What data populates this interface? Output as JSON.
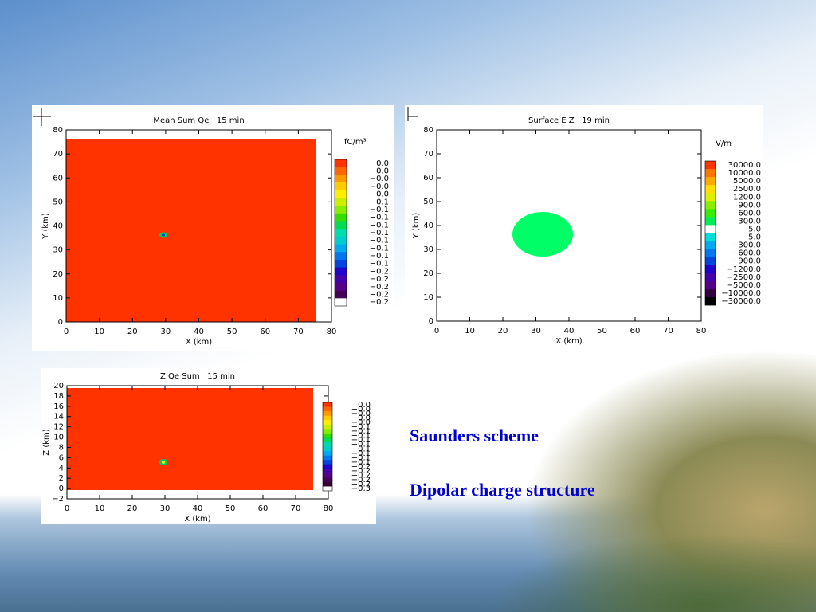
{
  "chart_data": [
    {
      "type": "field",
      "title": "Mean Sum Qe   15 min",
      "x_label": "X (km)",
      "y_label": "Y (km)",
      "xlim": [
        0,
        80
      ],
      "xticks": [
        0,
        10,
        20,
        30,
        40,
        50,
        60,
        70,
        80
      ],
      "ylim": [
        0,
        80
      ],
      "yticks": [
        0,
        10,
        20,
        30,
        40,
        50,
        60,
        70,
        80
      ],
      "colorbar_unit": "fC/m³",
      "colorbar_labels": [
        "0.0",
        "−0.0",
        "−0.0",
        "−0.0",
        "−0.0",
        "−0.1",
        "−0.1",
        "−0.1",
        "−0.1",
        "−0.1",
        "−0.1",
        "−0.1",
        "−0.1",
        "−0.1",
        "−0.2",
        "−0.2",
        "−0.2",
        "−0.2",
        "−0.2"
      ],
      "colorbar_colors": [
        "#ff3300",
        "#ff6600",
        "#ff9900",
        "#ffcc00",
        "#ffee00",
        "#ccee00",
        "#88ee00",
        "#33dd00",
        "#00dd55",
        "#00ddaa",
        "#00cccc",
        "#00aaee",
        "#0077ee",
        "#0044dd",
        "#2200cc",
        "#4400aa",
        "#550088",
        "#440055",
        "#ffffff"
      ]
    },
    {
      "type": "field",
      "title": "Surface E Z   19 min",
      "x_label": "X (km)",
      "y_label": "Y (km)",
      "xlim": [
        0,
        80
      ],
      "xticks": [
        0,
        10,
        20,
        30,
        40,
        50,
        60,
        70,
        80
      ],
      "ylim": [
        0,
        80
      ],
      "yticks": [
        0,
        10,
        20,
        30,
        40,
        50,
        60,
        70,
        80
      ],
      "colorbar_unit": "V/m",
      "colorbar_labels": [
        "30000.0",
        "10000.0",
        "5000.0",
        "2500.0",
        "1200.0",
        "900.0",
        "600.0",
        "300.0",
        "5.0",
        "−5.0",
        "−300.0",
        "−600.0",
        "−900.0",
        "−1200.0",
        "−2500.0",
        "−5000.0",
        "−10000.0",
        "−30000.0"
      ],
      "colorbar_colors": [
        "#ff3300",
        "#ff7700",
        "#ffaa00",
        "#ffdd00",
        "#ddee00",
        "#88ee00",
        "#33ee00",
        "#00ee55",
        "#ffffff",
        "#00dddd",
        "#00aaee",
        "#0077ee",
        "#0044dd",
        "#2200cc",
        "#4400aa",
        "#550088",
        "#330044",
        "#000000"
      ]
    },
    {
      "type": "field",
      "title": "Z Qe Sum   15 min",
      "x_label": "X (km)",
      "y_label": "Z (km)",
      "xlim": [
        0,
        80
      ],
      "xticks": [
        0,
        10,
        20,
        30,
        40,
        50,
        60,
        70,
        80
      ],
      "ylim": [
        -2,
        20
      ],
      "yticks": [
        {
          "value": -2,
          "label": "−2"
        },
        0,
        2,
        4,
        6,
        8,
        10,
        12,
        14,
        16,
        18,
        20
      ],
      "colorbar_labels": [
        "0.0",
        "−0.0",
        "−0.0",
        "−0.0",
        "−0.0",
        "−0.1",
        "−0.1",
        "−0.1",
        "−0.1",
        "−0.1",
        "−0.1",
        "−0.1",
        "−0.1",
        "−0.1",
        "−0.2",
        "−0.2",
        "−0.2",
        "−0.2",
        "−0.2",
        "−0.3"
      ],
      "colorbar_colors": [
        "#ff3300",
        "#ff6600",
        "#ff9900",
        "#ffcc00",
        "#ffee00",
        "#ccee00",
        "#88ee00",
        "#33dd00",
        "#00dd55",
        "#00ddaa",
        "#00cccc",
        "#00aaee",
        "#0077ee",
        "#0044dd",
        "#2200cc",
        "#4400aa",
        "#550088",
        "#440055",
        "#330033",
        "#ffffff"
      ]
    }
  ],
  "text": [
    "Saunders scheme",
    "Dipolar charge structure"
  ]
}
